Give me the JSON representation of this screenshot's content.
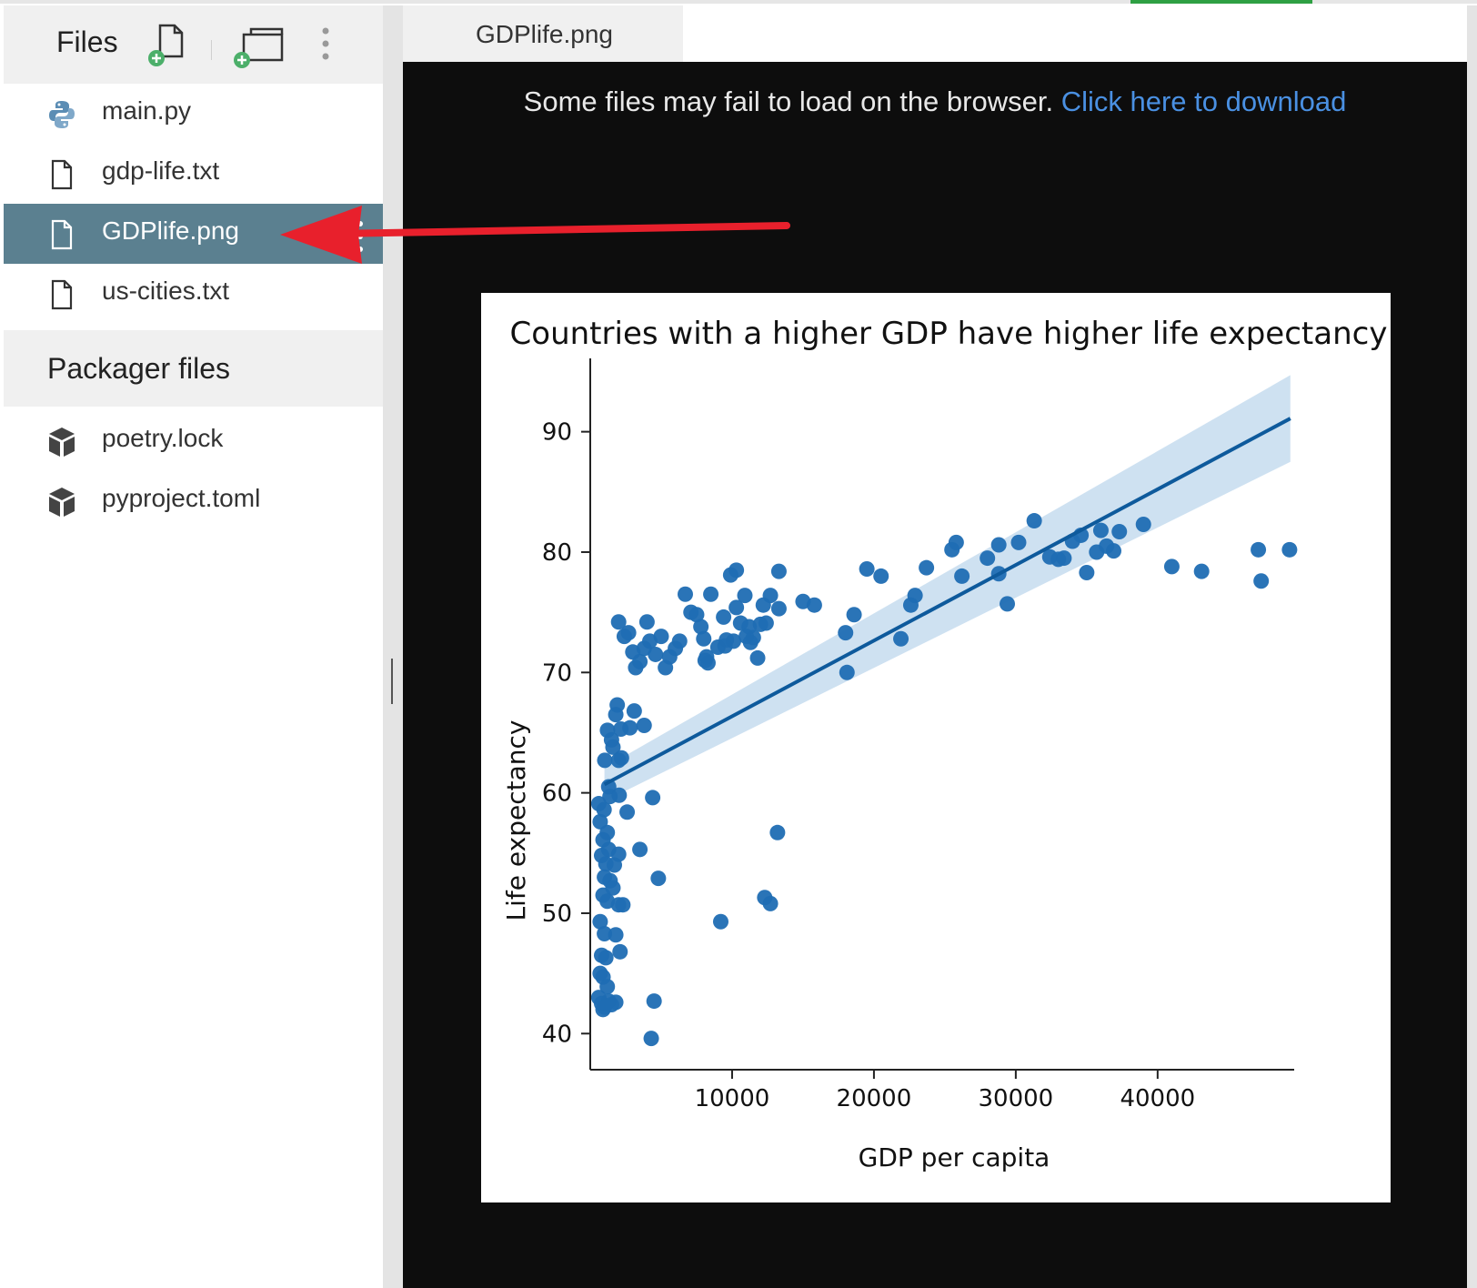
{
  "sidebar": {
    "title": "Files",
    "files": [
      {
        "label": "main.py",
        "icon": "python-icon"
      },
      {
        "label": "gdp-life.txt",
        "icon": "file-icon"
      },
      {
        "label": "GDPlife.png",
        "icon": "file-icon",
        "selected": true
      },
      {
        "label": "us-cities.txt",
        "icon": "file-icon"
      }
    ],
    "packager_title": "Packager files",
    "packager_files": [
      {
        "label": "poetry.lock",
        "icon": "package-icon"
      },
      {
        "label": "pyproject.toml",
        "icon": "package-icon"
      }
    ]
  },
  "tabs": [
    {
      "label": "GDPlife.png"
    }
  ],
  "viewer": {
    "notice": "Some files may fail to load on the browser.",
    "download_link": "Click here to download"
  },
  "colors": {
    "selected_bg": "#5b8090",
    "viewer_bg": "#0d0d0d",
    "link": "#4a90e2",
    "point": "#1f6db3",
    "ci_band": "#c6dcef",
    "accent_green": "#2ea043",
    "annotation_arrow": "#e8202c"
  },
  "chart_data": {
    "type": "scatter",
    "title": "Countries with a higher GDP have higher life expectancy",
    "xlabel": "GDP per capita",
    "ylabel": "Life expectancy",
    "xlim": [
      0,
      49500
    ],
    "ylim": [
      37,
      97
    ],
    "xticks": [
      10000,
      20000,
      30000,
      40000
    ],
    "yticks": [
      40,
      50,
      60,
      70,
      80,
      90
    ],
    "regression": {
      "x": [
        1000,
        49357
      ],
      "y": [
        60.7,
        91.1
      ],
      "ci_start": 1.4,
      "ci_end": 3.6
    },
    "points": [
      [
        974,
        58.6
      ],
      [
        1391,
        59.7
      ],
      [
        2040,
        59.8
      ],
      [
        1023,
        62.7
      ],
      [
        1214,
        65.2
      ],
      [
        1500,
        64.4
      ],
      [
        2163,
        65.3
      ],
      [
        1800,
        66.5
      ],
      [
        1902,
        67.3
      ],
      [
        1600,
        63.8
      ],
      [
        2200,
        62.9
      ],
      [
        2800,
        65.4
      ],
      [
        3100,
        66.8
      ],
      [
        3800,
        65.6
      ],
      [
        600,
        59.1
      ],
      [
        700,
        57.6
      ],
      [
        900,
        56.1
      ],
      [
        1200,
        56.7
      ],
      [
        1300,
        55.3
      ],
      [
        800,
        54.8
      ],
      [
        1100,
        54.1
      ],
      [
        1700,
        54.0
      ],
      [
        2000,
        54.9
      ],
      [
        1000,
        53.0
      ],
      [
        1400,
        52.7
      ],
      [
        1600,
        52.1
      ],
      [
        900,
        51.5
      ],
      [
        1200,
        51.0
      ],
      [
        2000,
        50.7
      ],
      [
        2300,
        50.7
      ],
      [
        700,
        49.3
      ],
      [
        1000,
        48.3
      ],
      [
        1800,
        48.2
      ],
      [
        2100,
        46.8
      ],
      [
        800,
        46.5
      ],
      [
        1100,
        46.3
      ],
      [
        700,
        45.0
      ],
      [
        900,
        44.7
      ],
      [
        1200,
        43.9
      ],
      [
        1300,
        42.7
      ],
      [
        1800,
        42.6
      ],
      [
        600,
        43.0
      ],
      [
        800,
        42.5
      ],
      [
        1000,
        42.2
      ],
      [
        1500,
        42.4
      ],
      [
        900,
        42.0
      ],
      [
        3500,
        55.3
      ],
      [
        4400,
        59.6
      ],
      [
        4800,
        52.9
      ],
      [
        4500,
        42.7
      ],
      [
        4300,
        39.6
      ],
      [
        9200,
        49.3
      ],
      [
        12300,
        51.3
      ],
      [
        12700,
        50.8
      ],
      [
        13200,
        56.7
      ],
      [
        2000,
        62.7
      ],
      [
        1300,
        60.5
      ],
      [
        2600,
        58.4
      ],
      [
        2000,
        74.2
      ],
      [
        2400,
        73.0
      ],
      [
        2700,
        73.3
      ],
      [
        3000,
        71.7
      ],
      [
        3200,
        70.4
      ],
      [
        3500,
        70.9
      ],
      [
        3800,
        72.0
      ],
      [
        4000,
        74.2
      ],
      [
        4200,
        72.6
      ],
      [
        4600,
        71.5
      ],
      [
        5000,
        73.0
      ],
      [
        5300,
        70.4
      ],
      [
        5600,
        71.3
      ],
      [
        6000,
        72.0
      ],
      [
        6300,
        72.6
      ],
      [
        6700,
        76.5
      ],
      [
        7100,
        75.0
      ],
      [
        7500,
        74.8
      ],
      [
        7800,
        73.8
      ],
      [
        8000,
        72.8
      ],
      [
        8200,
        71.3
      ],
      [
        8300,
        70.8
      ],
      [
        8500,
        76.5
      ],
      [
        9000,
        72.1
      ],
      [
        9400,
        74.6
      ],
      [
        9600,
        72.7
      ],
      [
        9900,
        78.1
      ],
      [
        10300,
        78.5
      ],
      [
        10300,
        75.4
      ],
      [
        10600,
        74.1
      ],
      [
        10900,
        76.4
      ],
      [
        11000,
        73.0
      ],
      [
        11300,
        72.5
      ],
      [
        11500,
        72.9
      ],
      [
        11800,
        71.2
      ],
      [
        12000,
        74.0
      ],
      [
        12200,
        75.6
      ],
      [
        12400,
        74.1
      ],
      [
        12700,
        76.4
      ],
      [
        13300,
        75.3
      ],
      [
        13300,
        78.4
      ],
      [
        15000,
        75.9
      ],
      [
        15800,
        75.6
      ],
      [
        8100,
        71.0
      ],
      [
        9500,
        72.2
      ],
      [
        10100,
        72.6
      ],
      [
        11200,
        73.8
      ],
      [
        18000,
        73.3
      ],
      [
        18100,
        70.0
      ],
      [
        18600,
        74.8
      ],
      [
        19500,
        78.6
      ],
      [
        20500,
        78.0
      ],
      [
        21900,
        72.8
      ],
      [
        22600,
        75.6
      ],
      [
        22900,
        76.4
      ],
      [
        23700,
        78.7
      ],
      [
        25500,
        80.2
      ],
      [
        25800,
        80.8
      ],
      [
        26200,
        78.0
      ],
      [
        28000,
        79.5
      ],
      [
        28800,
        78.2
      ],
      [
        28800,
        80.6
      ],
      [
        29400,
        75.7
      ],
      [
        30200,
        80.8
      ],
      [
        31300,
        82.6
      ],
      [
        32400,
        79.6
      ],
      [
        33000,
        79.4
      ],
      [
        33400,
        79.5
      ],
      [
        34000,
        80.9
      ],
      [
        34600,
        81.4
      ],
      [
        35000,
        78.3
      ],
      [
        35700,
        80.0
      ],
      [
        36000,
        81.8
      ],
      [
        36400,
        80.5
      ],
      [
        36900,
        80.1
      ],
      [
        37300,
        81.7
      ],
      [
        39000,
        82.3
      ],
      [
        41000,
        78.8
      ],
      [
        43100,
        78.4
      ],
      [
        47100,
        80.2
      ],
      [
        47300,
        77.6
      ],
      [
        49300,
        80.2
      ]
    ]
  }
}
